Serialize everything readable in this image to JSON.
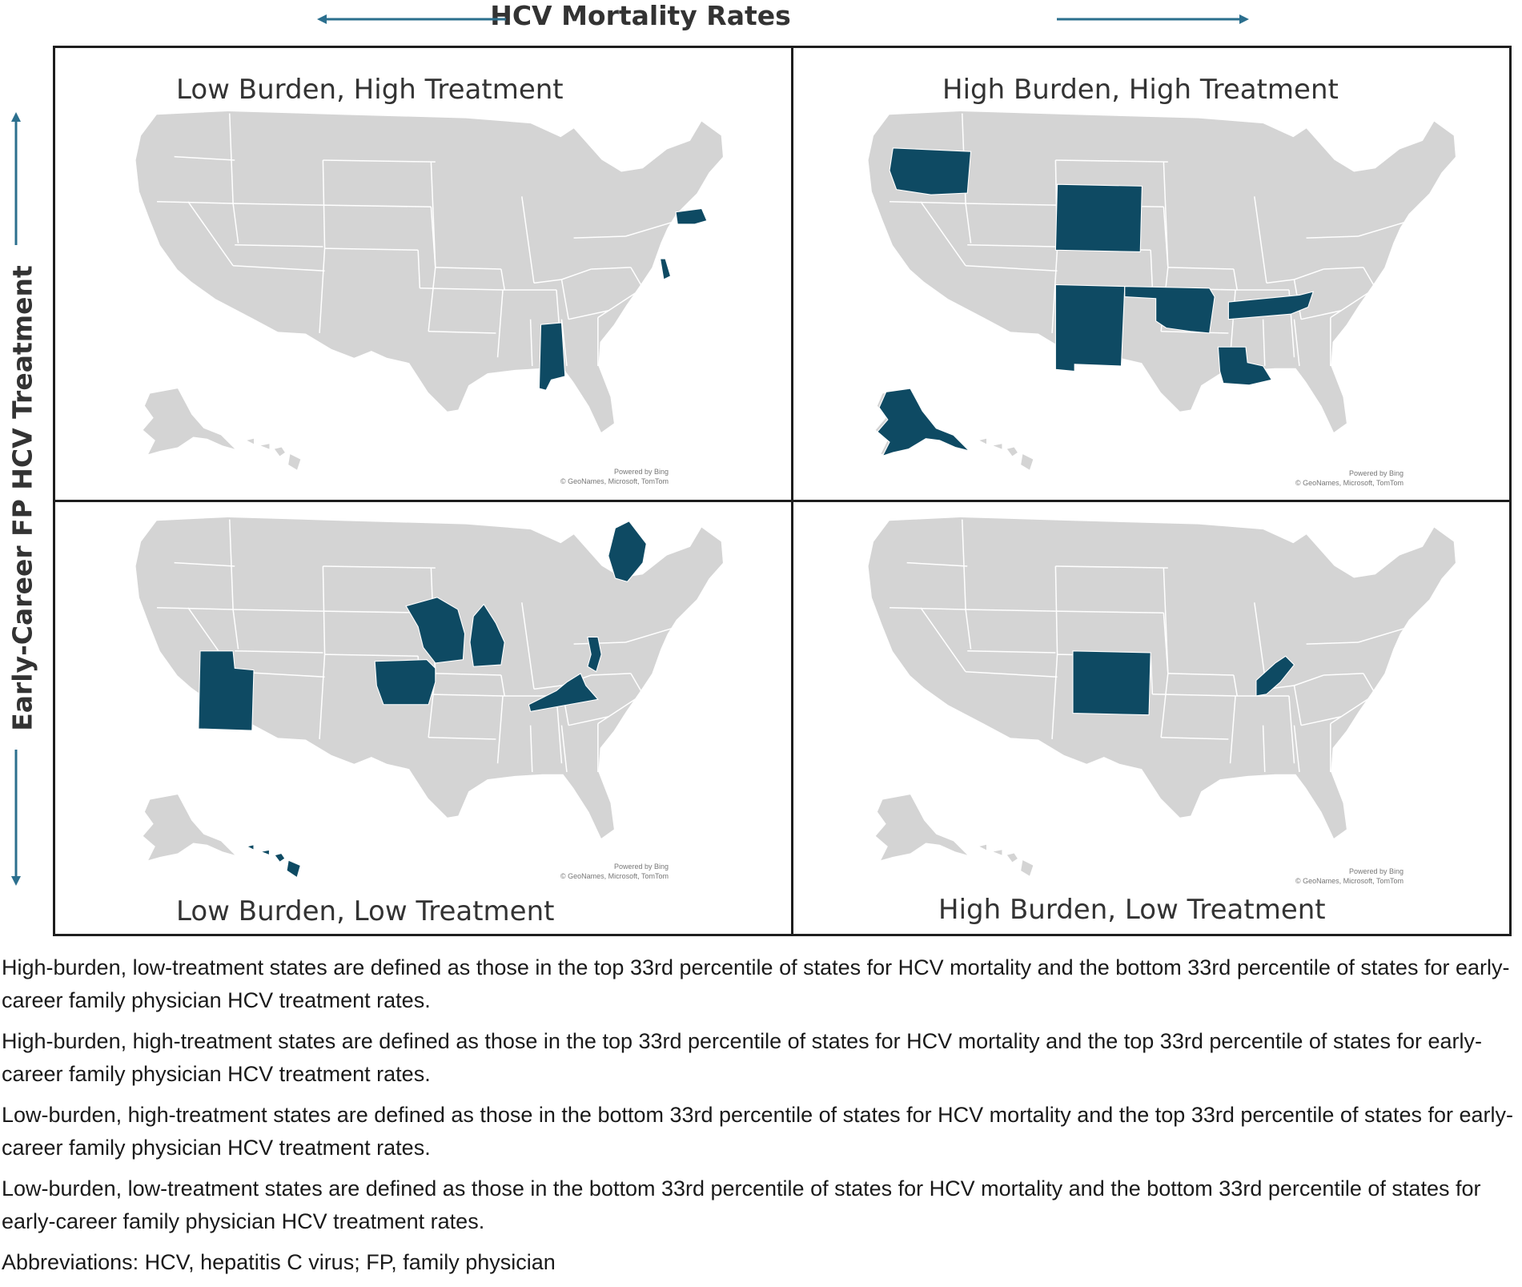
{
  "figure": {
    "top_axis_title": "HCV Mortality Rates",
    "side_axis_title": "Early-Career FP HCV Treatment"
  },
  "colors": {
    "highlight": "#0e4a63",
    "land": "#d4d4d4",
    "border": "#ffffff",
    "arrow": "#2b6f8e"
  },
  "quadrants": [
    {
      "title": "Low Burden, High Treatment",
      "highlighted_states": [
        "Massachusetts",
        "Delaware",
        "Alabama"
      ],
      "credit_line1": "Powered by Bing",
      "credit_line2": "© GeoNames, Microsoft, TomTom"
    },
    {
      "title": "High Burden, High Treatment",
      "highlighted_states": [
        "Washington",
        "Wyoming",
        "New Mexico",
        "Oklahoma",
        "Tennessee",
        "Louisiana",
        "Alaska"
      ],
      "credit_line1": "Powered by Bing",
      "credit_line2": "© GeoNames, Microsoft, TomTom"
    },
    {
      "title": "Low Burden, Low Treatment",
      "highlighted_states": [
        "Utah",
        "Iowa",
        "Wisconsin",
        "Michigan",
        "Maine",
        "New Jersey",
        "Virginia",
        "Hawaii"
      ],
      "credit_line1": "Powered by Bing",
      "credit_line2": "© GeoNames, Microsoft, TomTom"
    },
    {
      "title": "High Burden, Low Treatment",
      "highlighted_states": [
        "Colorado",
        "West Virginia"
      ],
      "credit_line1": "Powered by Bing",
      "credit_line2": "© GeoNames, Microsoft, TomTom"
    }
  ],
  "footnotes": [
    "High-burden, low-treatment states are defined as those in the top 33rd percentile of states for HCV mortality and the bottom 33rd percentile of states for early-career family physician HCV treatment rates.",
    "High-burden, high-treatment states are defined as those in the top 33rd percentile of states for HCV mortality and the top 33rd percentile of states for early-career family physician HCV treatment rates.",
    "Low-burden, high-treatment states are defined as those in the bottom 33rd percentile of states for HCV mortality and the top 33rd percentile of states for early-career family physician HCV treatment rates.",
    "Low-burden, low-treatment states are defined as those in the bottom 33rd percentile of states for HCV mortality and the bottom 33rd percentile of states for early-career family physician HCV treatment rates.",
    "Abbreviations: HCV, hepatitis C virus; FP, family physician"
  ]
}
